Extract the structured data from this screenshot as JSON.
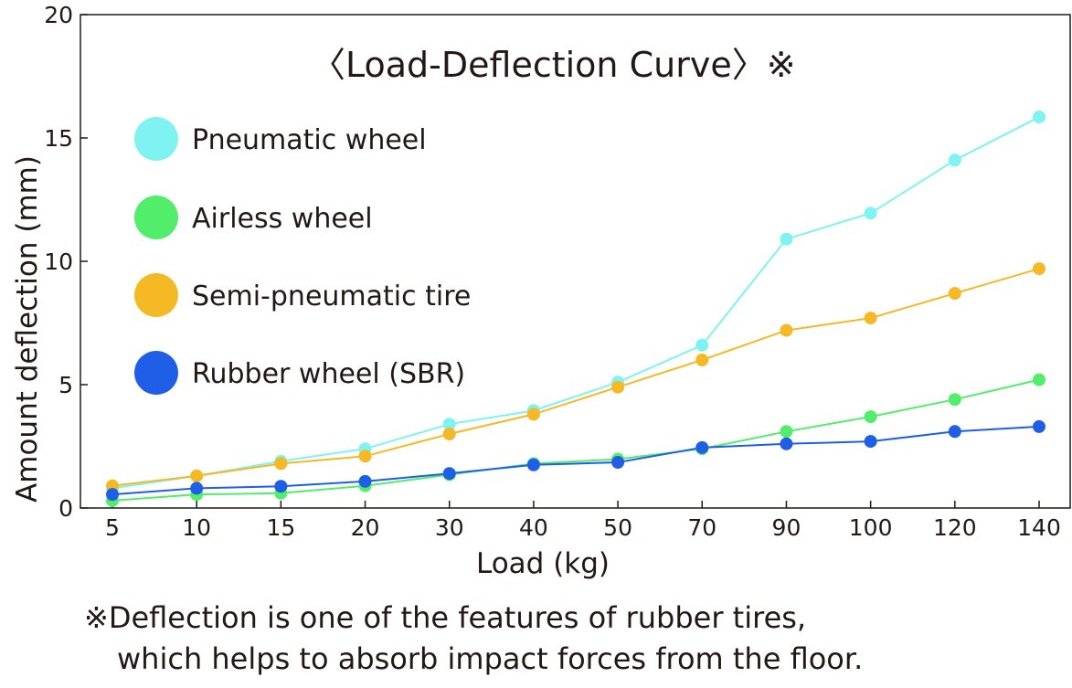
{
  "chart_data": {
    "type": "line",
    "title": "〈Load-Deflection Curve〉※",
    "xlabel": "Load (kg)",
    "ylabel": "Amount deflection (mm)",
    "categories": [
      "5",
      "10",
      "15",
      "20",
      "30",
      "40",
      "50",
      "70",
      "90",
      "100",
      "120",
      "140"
    ],
    "ylim": [
      0,
      20
    ],
    "yticks": [
      "0",
      "5",
      "10",
      "15",
      "20"
    ],
    "grid": false,
    "legend_position": "top-left",
    "series": [
      {
        "name": "Pneumatic wheel",
        "color": "#7ef3f1",
        "values": [
          0.8,
          1.3,
          1.9,
          2.4,
          3.4,
          3.95,
          5.1,
          6.6,
          10.9,
          11.95,
          14.1,
          15.85
        ]
      },
      {
        "name": "Airless wheel",
        "color": "#52ee6b",
        "values": [
          0.3,
          0.55,
          0.6,
          0.9,
          1.35,
          1.8,
          1.98,
          2.4,
          3.1,
          3.7,
          4.4,
          5.2
        ]
      },
      {
        "name": "Semi-pneumatic tire",
        "color": "#f4b925",
        "values": [
          0.9,
          1.3,
          1.8,
          2.1,
          3.0,
          3.8,
          4.9,
          6.0,
          7.2,
          7.7,
          8.7,
          9.7
        ]
      },
      {
        "name": "Rubber wheel (SBR)",
        "color": "#1f5ee6",
        "values": [
          0.55,
          0.8,
          0.88,
          1.08,
          1.4,
          1.75,
          1.85,
          2.45,
          2.6,
          2.7,
          3.1,
          3.3
        ]
      }
    ]
  },
  "footnote": {
    "line1": "※Deflection is one of the features of rubber tires,",
    "line2": "which helps to absorb impact forces from the floor."
  }
}
